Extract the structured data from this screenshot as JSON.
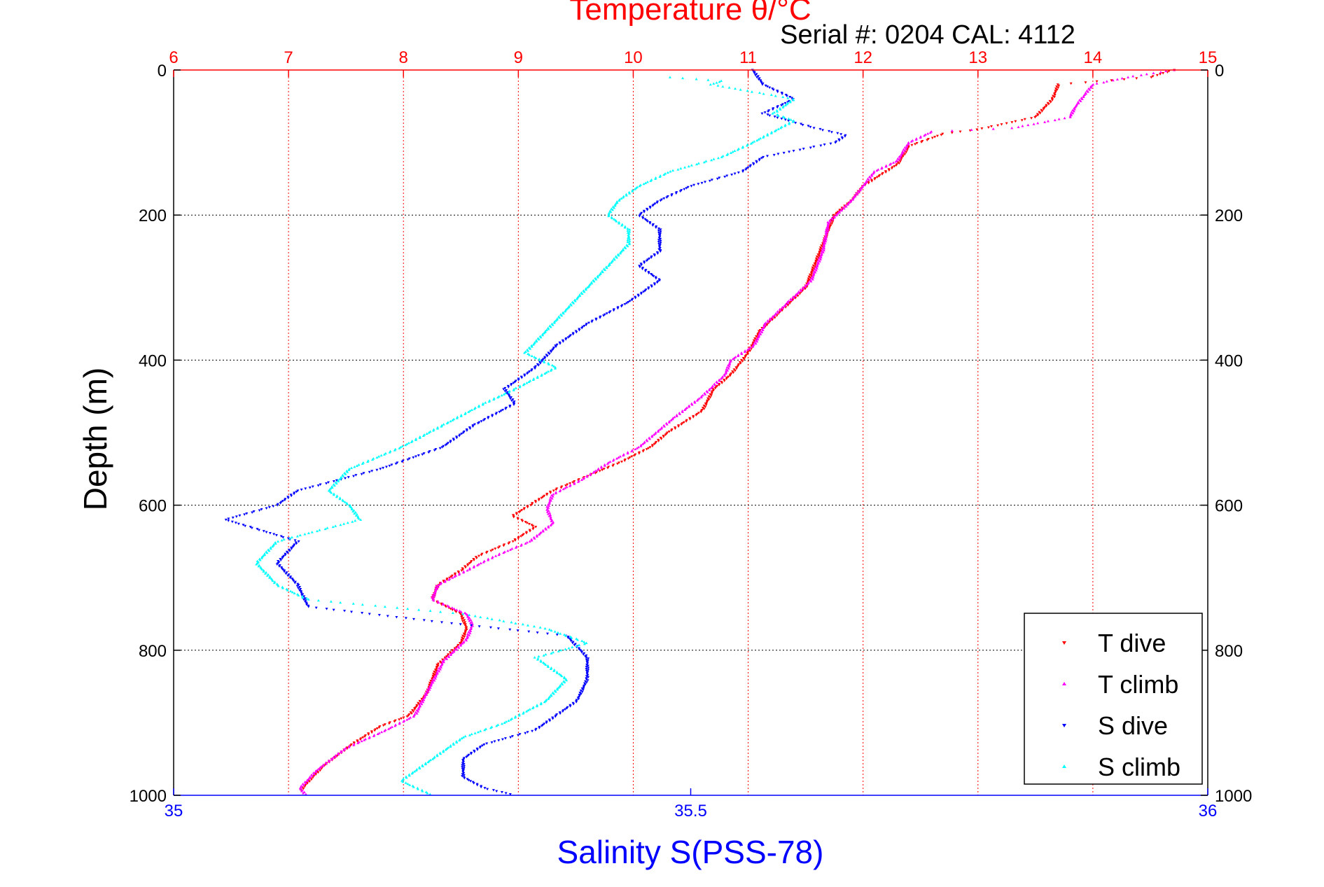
{
  "chart_data": {
    "type": "scatter",
    "title_top": "Temperature θ/°C",
    "subtitle": "Serial #: 0204  CAL: 4112",
    "ylabel": "Depth (m)",
    "xlabel_bottom": "Salinity S(PSS-78)",
    "y_axis": {
      "min": 0,
      "max": 1000,
      "reversed": true,
      "ticks": [
        0,
        200,
        400,
        600,
        800,
        1000
      ]
    },
    "top_axis": {
      "name": "Temperature",
      "min": 6,
      "max": 15,
      "ticks": [
        6,
        7,
        8,
        9,
        10,
        11,
        12,
        13,
        14,
        15
      ]
    },
    "bottom_axis": {
      "name": "Salinity",
      "min": 35,
      "max": 36,
      "ticks": [
        35,
        35.5,
        36
      ]
    },
    "grid": true,
    "legend_position": "bottom-right",
    "colors": {
      "temperature_axis": "#ff0000",
      "salinity_axis": "#0000ff"
    },
    "series": [
      {
        "name": "T dive",
        "axis": "top",
        "color": "#ff0000",
        "marker": "triangle-down",
        "points": [
          [
            14.7,
            0
          ],
          [
            14.5,
            10
          ],
          [
            13.7,
            20
          ],
          [
            13.65,
            40
          ],
          [
            13.5,
            65
          ],
          [
            13.0,
            82
          ],
          [
            12.7,
            88
          ],
          [
            12.4,
            105
          ],
          [
            12.3,
            130
          ],
          [
            12.15,
            145
          ],
          [
            12.0,
            160
          ],
          [
            11.9,
            180
          ],
          [
            11.75,
            200
          ],
          [
            11.7,
            220
          ],
          [
            11.6,
            260
          ],
          [
            11.5,
            300
          ],
          [
            11.3,
            330
          ],
          [
            11.1,
            360
          ],
          [
            11.0,
            390
          ],
          [
            10.85,
            420
          ],
          [
            10.7,
            440
          ],
          [
            10.6,
            470
          ],
          [
            10.3,
            500
          ],
          [
            10.15,
            520
          ],
          [
            9.9,
            540
          ],
          [
            9.6,
            560
          ],
          [
            9.3,
            580
          ],
          [
            9.1,
            600
          ],
          [
            8.95,
            615
          ],
          [
            9.15,
            630
          ],
          [
            8.95,
            650
          ],
          [
            8.65,
            670
          ],
          [
            8.5,
            690
          ],
          [
            8.3,
            710
          ],
          [
            8.25,
            730
          ],
          [
            8.5,
            750
          ],
          [
            8.55,
            770
          ],
          [
            8.5,
            790
          ],
          [
            8.3,
            820
          ],
          [
            8.2,
            860
          ],
          [
            8.05,
            890
          ],
          [
            7.8,
            905
          ],
          [
            7.55,
            930
          ],
          [
            7.3,
            960
          ],
          [
            7.15,
            985
          ],
          [
            7.1,
            995
          ]
        ]
      },
      {
        "name": "T climb",
        "axis": "top",
        "color": "#ff00ff",
        "marker": "triangle-up",
        "points": [
          [
            14.7,
            0
          ],
          [
            14.3,
            10
          ],
          [
            14.0,
            20
          ],
          [
            13.85,
            50
          ],
          [
            13.8,
            65
          ],
          [
            13.3,
            80
          ],
          [
            12.6,
            85
          ],
          [
            12.4,
            100
          ],
          [
            12.3,
            125
          ],
          [
            12.1,
            140
          ],
          [
            12.0,
            160
          ],
          [
            11.9,
            180
          ],
          [
            11.8,
            195
          ],
          [
            11.7,
            210
          ],
          [
            11.65,
            250
          ],
          [
            11.55,
            290
          ],
          [
            11.35,
            320
          ],
          [
            11.15,
            350
          ],
          [
            11.05,
            380
          ],
          [
            10.85,
            400
          ],
          [
            10.8,
            420
          ],
          [
            10.6,
            450
          ],
          [
            10.35,
            480
          ],
          [
            10.2,
            500
          ],
          [
            10.05,
            520
          ],
          [
            9.8,
            540
          ],
          [
            9.55,
            565
          ],
          [
            9.3,
            585
          ],
          [
            9.25,
            605
          ],
          [
            9.3,
            625
          ],
          [
            9.1,
            650
          ],
          [
            8.8,
            670
          ],
          [
            8.55,
            690
          ],
          [
            8.3,
            710
          ],
          [
            8.25,
            730
          ],
          [
            8.55,
            750
          ],
          [
            8.6,
            765
          ],
          [
            8.55,
            785
          ],
          [
            8.35,
            815
          ],
          [
            8.2,
            860
          ],
          [
            8.1,
            890
          ],
          [
            7.85,
            910
          ],
          [
            7.5,
            935
          ],
          [
            7.25,
            965
          ],
          [
            7.1,
            990
          ],
          [
            7.15,
            1000
          ]
        ]
      },
      {
        "name": "S dive",
        "axis": "bottom",
        "color": "#0000ff",
        "marker": "triangle-down",
        "points": [
          [
            35.56,
            0
          ],
          [
            35.57,
            20
          ],
          [
            35.6,
            40
          ],
          [
            35.57,
            60
          ],
          [
            35.62,
            80
          ],
          [
            35.65,
            90
          ],
          [
            35.64,
            100
          ],
          [
            35.57,
            120
          ],
          [
            35.55,
            140
          ],
          [
            35.5,
            160
          ],
          [
            35.47,
            180
          ],
          [
            35.45,
            200
          ],
          [
            35.47,
            220
          ],
          [
            35.47,
            250
          ],
          [
            35.45,
            270
          ],
          [
            35.47,
            290
          ],
          [
            35.44,
            320
          ],
          [
            35.4,
            350
          ],
          [
            35.37,
            380
          ],
          [
            35.35,
            410
          ],
          [
            35.32,
            440
          ],
          [
            35.33,
            460
          ],
          [
            35.29,
            490
          ],
          [
            35.26,
            520
          ],
          [
            35.2,
            550
          ],
          [
            35.12,
            580
          ],
          [
            35.1,
            600
          ],
          [
            35.05,
            620
          ],
          [
            35.12,
            650
          ],
          [
            35.1,
            680
          ],
          [
            35.12,
            710
          ],
          [
            35.13,
            740
          ],
          [
            35.25,
            760
          ],
          [
            35.38,
            780
          ],
          [
            35.4,
            810
          ],
          [
            35.4,
            840
          ],
          [
            35.39,
            870
          ],
          [
            35.37,
            890
          ],
          [
            35.35,
            910
          ],
          [
            35.3,
            930
          ],
          [
            35.28,
            950
          ],
          [
            35.28,
            975
          ],
          [
            35.3,
            990
          ],
          [
            35.33,
            1000
          ]
        ]
      },
      {
        "name": "S climb",
        "axis": "bottom",
        "color": "#00ffff",
        "marker": "triangle-up",
        "points": [
          [
            35.48,
            10
          ],
          [
            35.53,
            15
          ],
          [
            35.52,
            20
          ],
          [
            35.6,
            40
          ],
          [
            35.58,
            60
          ],
          [
            35.6,
            70
          ],
          [
            35.56,
            100
          ],
          [
            35.53,
            120
          ],
          [
            35.48,
            140
          ],
          [
            35.45,
            160
          ],
          [
            35.43,
            180
          ],
          [
            35.42,
            200
          ],
          [
            35.44,
            220
          ],
          [
            35.44,
            240
          ],
          [
            35.42,
            270
          ],
          [
            35.4,
            300
          ],
          [
            35.38,
            330
          ],
          [
            35.36,
            360
          ],
          [
            35.34,
            390
          ],
          [
            35.37,
            410
          ],
          [
            35.33,
            440
          ],
          [
            35.3,
            460
          ],
          [
            35.26,
            490
          ],
          [
            35.22,
            520
          ],
          [
            35.17,
            550
          ],
          [
            35.15,
            580
          ],
          [
            35.17,
            600
          ],
          [
            35.18,
            620
          ],
          [
            35.1,
            650
          ],
          [
            35.08,
            680
          ],
          [
            35.1,
            710
          ],
          [
            35.13,
            730
          ],
          [
            35.28,
            750
          ],
          [
            35.36,
            770
          ],
          [
            35.4,
            790
          ],
          [
            35.35,
            810
          ],
          [
            35.38,
            840
          ],
          [
            35.36,
            870
          ],
          [
            35.32,
            900
          ],
          [
            35.28,
            920
          ],
          [
            35.25,
            950
          ],
          [
            35.22,
            980
          ],
          [
            35.25,
            1000
          ]
        ]
      }
    ]
  }
}
